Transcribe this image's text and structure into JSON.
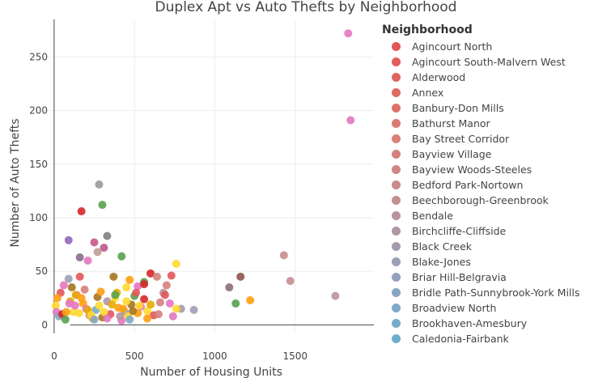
{
  "chart_data": {
    "type": "scatter",
    "title": "Duplex Apt vs Auto Thefts by Neighborhood",
    "xlabel": "Number of Housing Units",
    "ylabel": "Number of Auto Thefts",
    "xlim": [
      -75,
      1990
    ],
    "ylim": [
      -8,
      285
    ],
    "xticks": [
      0,
      500,
      1000,
      1500
    ],
    "yticks": [
      0,
      50,
      100,
      150,
      200,
      250
    ],
    "grid": true,
    "legend_position": "right",
    "legend_title": "Neighborhood",
    "legend": [
      {
        "name": "Agincourt North",
        "color": "#e15759"
      },
      {
        "name": "Agincourt South-Malvern West",
        "color": "#e15e5c"
      },
      {
        "name": "Alderwood",
        "color": "#e06560"
      },
      {
        "name": "Annex",
        "color": "#df6b65"
      },
      {
        "name": "Banbury-Don Mills",
        "color": "#de726a"
      },
      {
        "name": "Bathurst Manor",
        "color": "#db7a72"
      },
      {
        "name": "Bay Street Corridor",
        "color": "#d88079"
      },
      {
        "name": "Bayview Village",
        "color": "#d4817d"
      },
      {
        "name": "Bayview Woods-Steeles",
        "color": "#d08784"
      },
      {
        "name": "Bedford Park-Nortown",
        "color": "#c98b8c"
      },
      {
        "name": "Beechborough-Greenbrook",
        "color": "#c18f94"
      },
      {
        "name": "Bendale",
        "color": "#b9939c"
      },
      {
        "name": "Birchcliffe-Cliffside",
        "color": "#b097a5"
      },
      {
        "name": "Black Creek",
        "color": "#a69bad"
      },
      {
        "name": "Blake-Jones",
        "color": "#9c9fb5"
      },
      {
        "name": "Briar Hill-Belgravia",
        "color": "#92a2bd"
      },
      {
        "name": "Bridle Path-Sunnybrook-York Mills",
        "color": "#88a6c3"
      },
      {
        "name": "Broadview North",
        "color": "#7ea9c8"
      },
      {
        "name": "Brookhaven-Amesbury",
        "color": "#76abcb"
      },
      {
        "name": "Caledonia-Fairbank",
        "color": "#70adcc"
      }
    ],
    "series": [
      {
        "name": "points",
        "x": [
          1830,
          1845,
          1430,
          1470,
          1750,
          1160,
          1090,
          1220,
          1130,
          790,
          870,
          280,
          170,
          300,
          90,
          250,
          330,
          160,
          310,
          270,
          210,
          420,
          600,
          730,
          760,
          640,
          470,
          370,
          520,
          560,
          700,
          680,
          450,
          390,
          160,
          90,
          60,
          40,
          20,
          10,
          15,
          30,
          50,
          70,
          100,
          120,
          140,
          180,
          200,
          220,
          240,
          260,
          280,
          300,
          330,
          350,
          380,
          400,
          420,
          440,
          460,
          480,
          500,
          520,
          540,
          560,
          580,
          620,
          660,
          720,
          760,
          110,
          130,
          170,
          190,
          210,
          230,
          250,
          270,
          290,
          310,
          330,
          360,
          380,
          410,
          430,
          450,
          470,
          490,
          510,
          530,
          650,
          690,
          740,
          600,
          580,
          560,
          75,
          95,
          135,
          155
        ],
        "y": [
          272,
          191,
          65,
          41,
          27,
          45,
          35,
          23,
          20,
          15,
          14,
          131,
          106,
          112,
          79,
          77,
          83,
          63,
          72,
          68,
          60,
          64,
          48,
          46,
          57,
          45,
          42,
          45,
          36,
          40,
          37,
          30,
          35,
          30,
          45,
          43,
          37,
          30,
          25,
          18,
          12,
          8,
          10,
          5,
          22,
          12,
          28,
          20,
          15,
          9,
          6,
          14,
          18,
          7,
          22,
          10,
          25,
          16,
          4,
          12,
          8,
          19,
          27,
          11,
          17,
          24,
          13,
          9,
          21,
          20,
          15,
          35,
          18,
          25,
          33,
          14,
          9,
          5,
          26,
          31,
          12,
          6,
          19,
          28,
          8,
          15,
          22,
          5,
          13,
          30,
          18,
          10,
          28,
          8,
          19,
          6,
          38,
          12,
          20,
          28,
          11
        ],
        "colors": [
          "#e377c2",
          "#e377c2",
          "#c98b8c",
          "#c18f94",
          "#b9939c",
          "#8c564b",
          "#8c6d7c",
          "#ff9f0f",
          "#59a14f",
          "#a69bad",
          "#9c9fb5",
          "#9a9a9a",
          "#d62728",
          "#59a14f",
          "#9467bd",
          "#c75a8a",
          "#7f7f7f",
          "#8c6d8c",
          "#bc5a8c",
          "#c49c94",
          "#e377c2",
          "#59a14f",
          "#d62728",
          "#e15759",
          "#ffd92f",
          "#d4817d",
          "#ff9f0f",
          "#a6761d",
          "#e377c2",
          "#59a14f",
          "#d88079",
          "#b9939c",
          "#ffd92f",
          "#e6ab02",
          "#e15759",
          "#9c9fb5",
          "#e377c2",
          "#e15759",
          "#ff9f0f",
          "#ffd92f",
          "#e377c2",
          "#88a6c3",
          "#d62728",
          "#59a14f",
          "#e6ab02",
          "#ffd92f",
          "#e377c2",
          "#ff9f0f",
          "#e377c2",
          "#d88079",
          "#e6ab02",
          "#76abcb",
          "#ffd92f",
          "#a6761d",
          "#b097a5",
          "#e15759",
          "#ffd92f",
          "#ff9f0f",
          "#e377c2",
          "#92a2bd",
          "#ffd92f",
          "#a6761d",
          "#59a14f",
          "#ff9f0f",
          "#e377c2",
          "#d62728",
          "#ffd92f",
          "#e15759",
          "#d4817d",
          "#e377c2",
          "#ffd92f",
          "#a6761d",
          "#e377c2",
          "#ff9f0f",
          "#d88079",
          "#e6ab02",
          "#ffd92f",
          "#88a6c3",
          "#a6761d",
          "#ff9f0f",
          "#ffd92f",
          "#e377c2",
          "#e6ab02",
          "#59a14f",
          "#b9939c",
          "#ff9f0f",
          "#ffd92f",
          "#7ea9c8",
          "#a6761d",
          "#e15759",
          "#ffd92f",
          "#d4817d",
          "#e15759",
          "#e377c2",
          "#e6ab02",
          "#ff9f0f",
          "#d62728",
          "#ff9f0f",
          "#e377c2",
          "#e6ab02",
          "#ffd92f"
        ]
      }
    ]
  }
}
